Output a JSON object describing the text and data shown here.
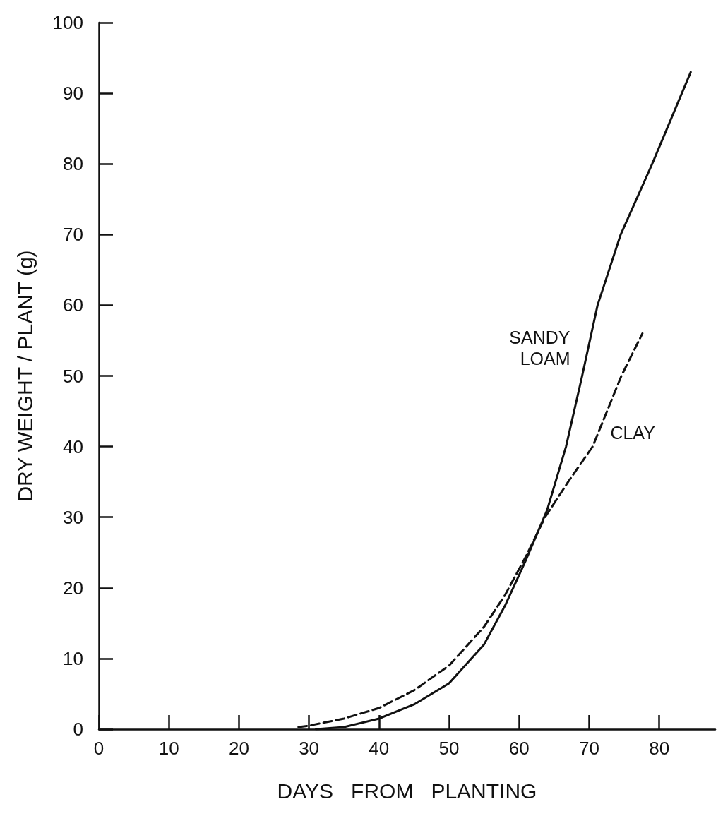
{
  "chart_data": {
    "type": "line",
    "xlabel": "DAYS   FROM   PLANTING",
    "ylabel": "DRY WEIGHT / PLANT (g)",
    "xlim": [
      0,
      88
    ],
    "ylim": [
      0,
      100
    ],
    "xticks": [
      0,
      10,
      20,
      30,
      40,
      50,
      60,
      70,
      80
    ],
    "yticks": [
      0,
      10,
      20,
      30,
      40,
      50,
      60,
      70,
      80,
      90,
      100
    ],
    "grid": false,
    "legend": false,
    "marker": "none",
    "series": [
      {
        "name": "SANDY LOAM",
        "color": "#111111",
        "line_style": "solid",
        "x": [
          31,
          35,
          40,
          45,
          50,
          55,
          58,
          61,
          64,
          66.7,
          69,
          71.2,
          74.5,
          79,
          84.5
        ],
        "values": [
          0,
          0.3,
          1.5,
          3.5,
          6.5,
          12,
          17.5,
          24,
          31,
          40,
          50,
          60,
          70,
          80,
          93
        ]
      },
      {
        "name": "CLAY",
        "color": "#111111",
        "line_style": "dashed",
        "x": [
          28.5,
          30,
          35,
          40,
          45,
          50,
          55,
          58,
          61,
          63.7,
          67,
          70.5,
          74.6,
          77.6
        ],
        "values": [
          0.3,
          0.5,
          1.5,
          3,
          5.5,
          9,
          14.5,
          19,
          24.5,
          30,
          35,
          40,
          50,
          56
        ]
      }
    ]
  }
}
